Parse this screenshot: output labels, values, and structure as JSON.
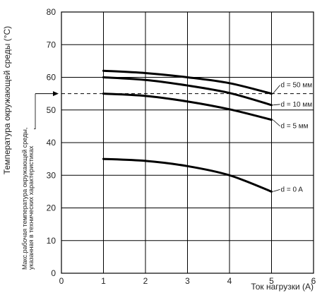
{
  "chart_data": {
    "type": "line",
    "xlabel": "Ток нагрузки (A)",
    "ylabel": "Температура окружающей среды (°C)",
    "xlim": [
      0,
      6
    ],
    "ylim": [
      0,
      80
    ],
    "x_ticks": [
      "0",
      "1",
      "2",
      "3",
      "4",
      "5",
      "6"
    ],
    "y_ticks": [
      "0",
      "10",
      "20",
      "30",
      "40",
      "50",
      "60",
      "70",
      "80"
    ],
    "grid": true,
    "reference_line": {
      "y": 55,
      "style": "dashed",
      "label_lines": [
        "Макс.рабочая температура окружающей среды,",
        "указанная в технических характеристиках"
      ]
    },
    "series": [
      {
        "name": "d = 50 мм",
        "x": [
          1,
          2,
          3,
          4,
          5
        ],
        "y": [
          62,
          61.3,
          60,
          58.2,
          55
        ]
      },
      {
        "name": "d = 10 мм",
        "x": [
          1,
          2,
          3,
          4,
          5
        ],
        "y": [
          60,
          59.2,
          57.5,
          55.2,
          51.5
        ]
      },
      {
        "name": "d = 5 мм",
        "x": [
          1,
          2,
          3,
          4,
          5
        ],
        "y": [
          55,
          54.3,
          52.6,
          50.2,
          47
        ]
      },
      {
        "name": "d = 0 A",
        "x": [
          1,
          2,
          3,
          4,
          5
        ],
        "y": [
          35,
          34.4,
          32.8,
          30,
          25
        ]
      }
    ]
  }
}
